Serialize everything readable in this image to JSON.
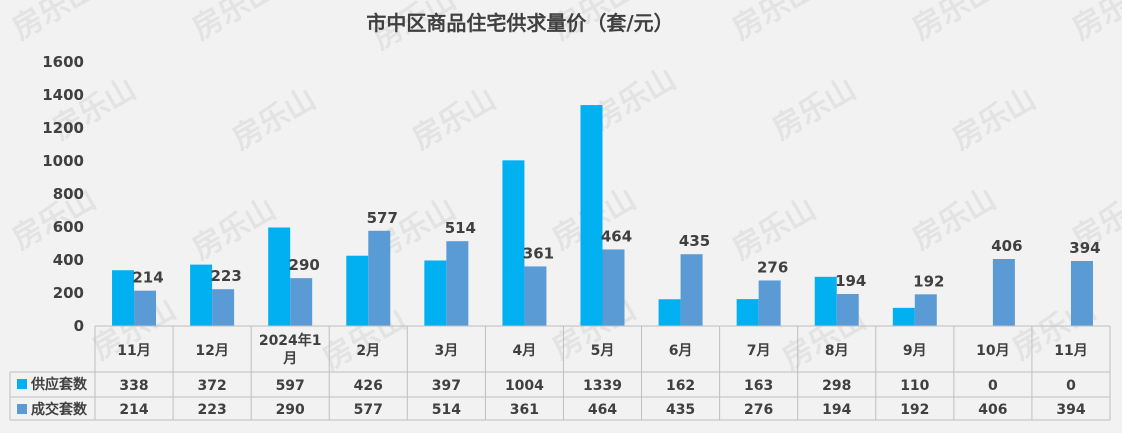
{
  "chart_data": {
    "type": "bar",
    "title": "市中区商品住宅供求量价（套/元）",
    "categories": [
      "11月",
      "12月",
      "2024年1月",
      "2月",
      "3月",
      "4月",
      "5月",
      "6月",
      "7月",
      "8月",
      "9月",
      "10月",
      "11月"
    ],
    "series": [
      {
        "name": "供应套数",
        "color": "#00b0f0",
        "values": [
          338,
          372,
          597,
          426,
          397,
          1004,
          1339,
          162,
          163,
          298,
          110,
          0,
          0
        ]
      },
      {
        "name": "成交套数",
        "color": "#5b9bd5",
        "values": [
          214,
          223,
          290,
          577,
          514,
          361,
          464,
          435,
          276,
          194,
          192,
          406,
          394
        ]
      }
    ],
    "data_labels_series": "成交套数",
    "ylim": [
      0,
      1600
    ],
    "yticks": [
      0,
      200,
      400,
      600,
      800,
      1000,
      1200,
      1400,
      1600
    ],
    "grid": false,
    "legend": "data-table",
    "watermark": "房乐山"
  }
}
